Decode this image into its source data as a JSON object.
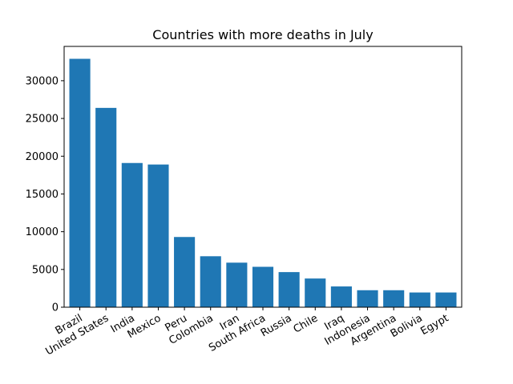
{
  "chart_data": {
    "type": "bar",
    "title": "Countries with more deaths in July",
    "xlabel": "",
    "ylabel": "",
    "categories": [
      "Brazil",
      "United States",
      "India",
      "Mexico",
      "Peru",
      "Colombia",
      "Iran",
      "South Africa",
      "Russia",
      "Chile",
      "Iraq",
      "Indonesia",
      "Argentina",
      "Bolivia",
      "Egypt"
    ],
    "values": [
      32900,
      26400,
      19100,
      18900,
      9300,
      6750,
      5900,
      5350,
      4650,
      3800,
      2750,
      2250,
      2250,
      1950,
      1950
    ],
    "ylim": [
      0,
      34545
    ],
    "yticks": [
      0,
      5000,
      10000,
      15000,
      20000,
      25000,
      30000
    ],
    "xtick_rotation": 30,
    "grid": false,
    "bar_color": "#1f77b4"
  }
}
